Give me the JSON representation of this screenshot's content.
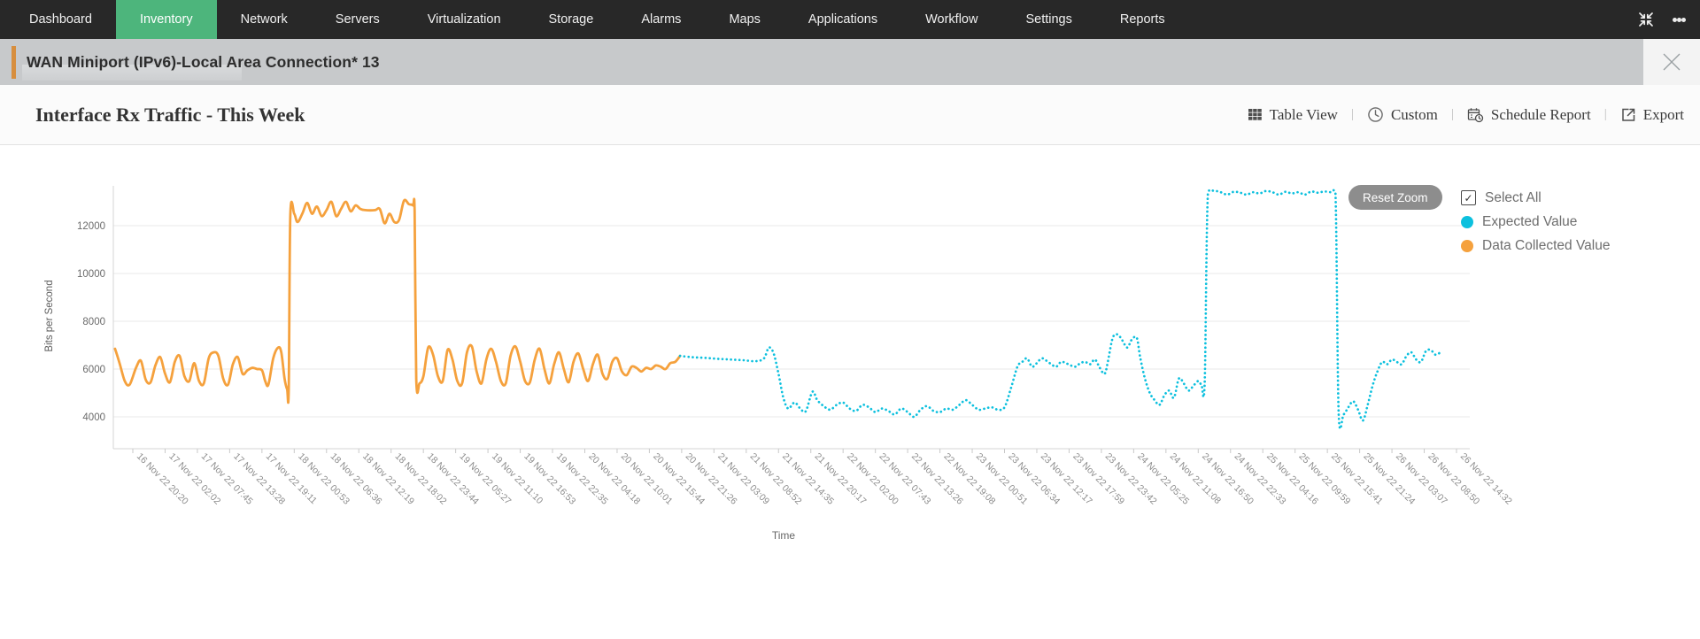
{
  "colors": {
    "navbar_bg": "#282828",
    "nav_active_green": "#4DB57C",
    "accent_orange": "#D78E3E",
    "expected_value_cyan": "#0CC0DE",
    "data_collected_orange": "#F5A13D",
    "reset_zoom_gray": "#8D8D8D"
  },
  "navbar": {
    "items": [
      {
        "label": "Dashboard",
        "active": false
      },
      {
        "label": "Inventory",
        "active": true
      },
      {
        "label": "Network",
        "active": false
      },
      {
        "label": "Servers",
        "active": false
      },
      {
        "label": "Virtualization",
        "active": false
      },
      {
        "label": "Storage",
        "active": false
      },
      {
        "label": "Alarms",
        "active": false
      },
      {
        "label": "Maps",
        "active": false
      },
      {
        "label": "Applications",
        "active": false
      },
      {
        "label": "Workflow",
        "active": false
      },
      {
        "label": "Settings",
        "active": false
      },
      {
        "label": "Reports",
        "active": false
      }
    ],
    "icons": [
      "collapse-icon",
      "kebab-menu-icon"
    ]
  },
  "header": {
    "title": "WAN Miniport (IPv6)-Local Area Connection* 13",
    "close_icon": "close-icon"
  },
  "toolbar": {
    "title": "Interface Rx Traffic - This Week",
    "separator": "|",
    "actions": [
      {
        "label": "Table View",
        "icon": "table-icon"
      },
      {
        "label": "Custom",
        "icon": "clock-icon"
      },
      {
        "label": "Schedule Report",
        "icon": "calendar-clock-icon"
      },
      {
        "label": "Export",
        "icon": "export-icon"
      }
    ]
  },
  "chart_controls": {
    "reset_zoom_label": "Reset Zoom"
  },
  "legend": {
    "select_all_label": "Select All",
    "select_all_checked": true,
    "check_icon": "check-icon"
  },
  "chart_data": {
    "type": "line",
    "title": "Interface Rx Traffic - This Week",
    "xlabel": "Time",
    "ylabel": "Bits per Second",
    "ylim": [
      2700,
      13700
    ],
    "y_ticks": [
      4000,
      6000,
      8000,
      10000,
      12000
    ],
    "grid": true,
    "legend_position": "right",
    "tick_label_angle": 45,
    "x_categories": [
      "16 Nov 22 20:20",
      "17 Nov 22 02:02",
      "17 Nov 22 07:45",
      "17 Nov 22 13:28",
      "17 Nov 22 19:11",
      "18 Nov 22 00:53",
      "18 Nov 22 06:36",
      "18 Nov 22 12:19",
      "18 Nov 22 18:02",
      "18 Nov 22 23:44",
      "19 Nov 22 05:27",
      "19 Nov 22 11:10",
      "19 Nov 22 16:53",
      "19 Nov 22 22:35",
      "20 Nov 22 04:18",
      "20 Nov 22 10:01",
      "20 Nov 22 15:44",
      "20 Nov 22 21:26",
      "21 Nov 22 03:09",
      "21 Nov 22 08:52",
      "21 Nov 22 14:35",
      "21 Nov 22 20:17",
      "22 Nov 22 02:00",
      "22 Nov 22 07:43",
      "22 Nov 22 13:26",
      "22 Nov 22 19:08",
      "23 Nov 22 00:51",
      "23 Nov 22 06:34",
      "23 Nov 22 12:17",
      "23 Nov 22 17:59",
      "23 Nov 22 23:42",
      "24 Nov 22 05:25",
      "24 Nov 22 11:08",
      "24 Nov 22 16:50",
      "24 Nov 22 22:33",
      "25 Nov 22 04:16",
      "25 Nov 22 09:59",
      "25 Nov 22 15:41",
      "25 Nov 22 21:24",
      "26 Nov 22 03:07",
      "26 Nov 22 08:50",
      "26 Nov 22 14:32"
    ],
    "series": [
      {
        "name": "Expected Value",
        "color": "#0CC0DE",
        "style": "dotted",
        "points": [
          [
            16.95,
            6550
          ],
          [
            17.3,
            6500
          ],
          [
            17.7,
            6470
          ],
          [
            18.1,
            6430
          ],
          [
            18.5,
            6400
          ],
          [
            18.9,
            6370
          ],
          [
            19.3,
            6330
          ],
          [
            19.55,
            6450
          ],
          [
            19.7,
            6900
          ],
          [
            19.85,
            6650
          ],
          [
            20,
            5800
          ],
          [
            20.15,
            4800
          ],
          [
            20.3,
            4350
          ],
          [
            20.5,
            4600
          ],
          [
            20.7,
            4300
          ],
          [
            20.85,
            4250
          ],
          [
            21.05,
            5050
          ],
          [
            21.2,
            4700
          ],
          [
            21.4,
            4450
          ],
          [
            21.6,
            4300
          ],
          [
            21.8,
            4500
          ],
          [
            22,
            4600
          ],
          [
            22.2,
            4350
          ],
          [
            22.4,
            4250
          ],
          [
            22.6,
            4500
          ],
          [
            22.8,
            4400
          ],
          [
            23,
            4200
          ],
          [
            23.2,
            4350
          ],
          [
            23.4,
            4250
          ],
          [
            23.6,
            4100
          ],
          [
            23.8,
            4350
          ],
          [
            24,
            4200
          ],
          [
            24.2,
            4000
          ],
          [
            24.4,
            4300
          ],
          [
            24.6,
            4450
          ],
          [
            24.8,
            4250
          ],
          [
            25,
            4200
          ],
          [
            25.2,
            4350
          ],
          [
            25.4,
            4300
          ],
          [
            25.6,
            4500
          ],
          [
            25.8,
            4700
          ],
          [
            26,
            4500
          ],
          [
            26.2,
            4300
          ],
          [
            26.4,
            4350
          ],
          [
            26.6,
            4400
          ],
          [
            26.8,
            4300
          ],
          [
            27,
            4400
          ],
          [
            27.2,
            5200
          ],
          [
            27.4,
            6100
          ],
          [
            27.55,
            6300
          ],
          [
            27.7,
            6450
          ],
          [
            27.85,
            6100
          ],
          [
            28,
            6250
          ],
          [
            28.15,
            6450
          ],
          [
            28.3,
            6350
          ],
          [
            28.45,
            6200
          ],
          [
            28.6,
            6100
          ],
          [
            28.75,
            6300
          ],
          [
            28.9,
            6250
          ],
          [
            29.05,
            6150
          ],
          [
            29.2,
            6100
          ],
          [
            29.35,
            6250
          ],
          [
            29.5,
            6300
          ],
          [
            29.65,
            6200
          ],
          [
            29.8,
            6400
          ],
          [
            29.95,
            6050
          ],
          [
            30.1,
            5800
          ],
          [
            30.2,
            6300
          ],
          [
            30.35,
            7300
          ],
          [
            30.5,
            7450
          ],
          [
            30.65,
            7200
          ],
          [
            30.8,
            6900
          ],
          [
            30.95,
            7250
          ],
          [
            31.1,
            7300
          ],
          [
            31.2,
            6500
          ],
          [
            31.35,
            5600
          ],
          [
            31.5,
            5000
          ],
          [
            31.65,
            4700
          ],
          [
            31.8,
            4500
          ],
          [
            31.95,
            4900
          ],
          [
            32.1,
            5100
          ],
          [
            32.25,
            4800
          ],
          [
            32.4,
            5600
          ],
          [
            32.55,
            5400
          ],
          [
            32.7,
            5100
          ],
          [
            32.85,
            5300
          ],
          [
            33,
            5500
          ],
          [
            33.1,
            5350
          ],
          [
            33.2,
            5450
          ],
          [
            33.3,
            13350
          ],
          [
            33.5,
            13450
          ],
          [
            33.7,
            13400
          ],
          [
            33.9,
            13300
          ],
          [
            34.1,
            13420
          ],
          [
            34.3,
            13380
          ],
          [
            34.5,
            13300
          ],
          [
            34.7,
            13400
          ],
          [
            34.9,
            13350
          ],
          [
            35.1,
            13450
          ],
          [
            35.3,
            13400
          ],
          [
            35.5,
            13300
          ],
          [
            35.7,
            13420
          ],
          [
            35.9,
            13350
          ],
          [
            36.1,
            13400
          ],
          [
            36.3,
            13300
          ],
          [
            36.5,
            13430
          ],
          [
            36.7,
            13380
          ],
          [
            36.9,
            13430
          ],
          [
            37.1,
            13400
          ],
          [
            37.25,
            13350
          ],
          [
            37.35,
            4150
          ],
          [
            37.5,
            4100
          ],
          [
            37.65,
            4400
          ],
          [
            37.8,
            4650
          ],
          [
            37.95,
            4300
          ],
          [
            38.1,
            3850
          ],
          [
            38.25,
            4500
          ],
          [
            38.4,
            5300
          ],
          [
            38.55,
            5900
          ],
          [
            38.7,
            6300
          ],
          [
            38.85,
            6200
          ],
          [
            39,
            6400
          ],
          [
            39.15,
            6300
          ],
          [
            39.3,
            6200
          ],
          [
            39.45,
            6550
          ],
          [
            39.6,
            6700
          ],
          [
            39.75,
            6400
          ],
          [
            39.9,
            6300
          ],
          [
            40.05,
            6750
          ],
          [
            40.2,
            6800
          ],
          [
            40.35,
            6600
          ],
          [
            40.5,
            6700
          ]
        ]
      },
      {
        "name": "Data Collected Value",
        "color": "#F5A13D",
        "style": "solid",
        "points": [
          [
            -0.55,
            6850
          ],
          [
            -0.4,
            6200
          ],
          [
            -0.25,
            5500
          ],
          [
            -0.1,
            5350
          ],
          [
            0.1,
            6050
          ],
          [
            0.25,
            6350
          ],
          [
            0.4,
            5550
          ],
          [
            0.55,
            5450
          ],
          [
            0.7,
            6150
          ],
          [
            0.85,
            6500
          ],
          [
            1,
            5800
          ],
          [
            1.15,
            5450
          ],
          [
            1.3,
            6300
          ],
          [
            1.45,
            6550
          ],
          [
            1.6,
            5700
          ],
          [
            1.75,
            5500
          ],
          [
            1.9,
            6250
          ],
          [
            2.05,
            5500
          ],
          [
            2.2,
            5400
          ],
          [
            2.35,
            6450
          ],
          [
            2.5,
            6700
          ],
          [
            2.65,
            6550
          ],
          [
            2.8,
            5600
          ],
          [
            2.95,
            5350
          ],
          [
            3.1,
            6200
          ],
          [
            3.25,
            6500
          ],
          [
            3.4,
            5800
          ],
          [
            3.55,
            5950
          ],
          [
            3.7,
            6050
          ],
          [
            3.85,
            6000
          ],
          [
            4,
            5950
          ],
          [
            4.1,
            5500
          ],
          [
            4.2,
            5350
          ],
          [
            4.35,
            6450
          ],
          [
            4.5,
            6900
          ],
          [
            4.6,
            6700
          ],
          [
            4.7,
            5600
          ],
          [
            4.78,
            5150
          ],
          [
            4.83,
            5150
          ],
          [
            4.88,
            12450
          ],
          [
            5,
            12500
          ],
          [
            5.1,
            12150
          ],
          [
            5.25,
            12500
          ],
          [
            5.4,
            12950
          ],
          [
            5.55,
            12500
          ],
          [
            5.7,
            12800
          ],
          [
            5.85,
            12400
          ],
          [
            6,
            12650
          ],
          [
            6.15,
            13000
          ],
          [
            6.3,
            12400
          ],
          [
            6.45,
            12700
          ],
          [
            6.6,
            13000
          ],
          [
            6.75,
            12600
          ],
          [
            6.9,
            12850
          ],
          [
            7.05,
            12700
          ],
          [
            7.2,
            12650
          ],
          [
            7.5,
            12650
          ],
          [
            7.65,
            12700
          ],
          [
            7.8,
            12100
          ],
          [
            7.95,
            12500
          ],
          [
            8.1,
            12150
          ],
          [
            8.25,
            12250
          ],
          [
            8.4,
            13050
          ],
          [
            8.55,
            12900
          ],
          [
            8.68,
            12850
          ],
          [
            8.73,
            12600
          ],
          [
            8.78,
            5600
          ],
          [
            8.88,
            5400
          ],
          [
            9,
            5700
          ],
          [
            9.15,
            6900
          ],
          [
            9.3,
            6600
          ],
          [
            9.45,
            5700
          ],
          [
            9.6,
            5500
          ],
          [
            9.75,
            6800
          ],
          [
            9.9,
            6400
          ],
          [
            10.05,
            5500
          ],
          [
            10.2,
            5400
          ],
          [
            10.35,
            6700
          ],
          [
            10.5,
            6950
          ],
          [
            10.65,
            5900
          ],
          [
            10.8,
            5400
          ],
          [
            10.95,
            6400
          ],
          [
            11.1,
            6850
          ],
          [
            11.25,
            6300
          ],
          [
            11.4,
            5500
          ],
          [
            11.55,
            5400
          ],
          [
            11.7,
            6550
          ],
          [
            11.85,
            6950
          ],
          [
            12,
            6300
          ],
          [
            12.15,
            5500
          ],
          [
            12.3,
            5450
          ],
          [
            12.45,
            6400
          ],
          [
            12.6,
            6850
          ],
          [
            12.75,
            6000
          ],
          [
            12.9,
            5400
          ],
          [
            13.05,
            6200
          ],
          [
            13.2,
            6700
          ],
          [
            13.35,
            6000
          ],
          [
            13.5,
            5450
          ],
          [
            13.65,
            6300
          ],
          [
            13.8,
            6650
          ],
          [
            13.95,
            6000
          ],
          [
            14.1,
            5500
          ],
          [
            14.25,
            6200
          ],
          [
            14.4,
            6600
          ],
          [
            14.55,
            5800
          ],
          [
            14.7,
            5600
          ],
          [
            14.85,
            6300
          ],
          [
            15,
            6450
          ],
          [
            15.15,
            5900
          ],
          [
            15.3,
            5750
          ],
          [
            15.45,
            6100
          ],
          [
            15.6,
            6050
          ],
          [
            15.75,
            5900
          ],
          [
            15.9,
            6050
          ],
          [
            16.05,
            6000
          ],
          [
            16.2,
            6150
          ],
          [
            16.35,
            6100
          ],
          [
            16.5,
            6000
          ],
          [
            16.65,
            6250
          ],
          [
            16.8,
            6300
          ],
          [
            16.95,
            6550
          ]
        ]
      }
    ]
  }
}
